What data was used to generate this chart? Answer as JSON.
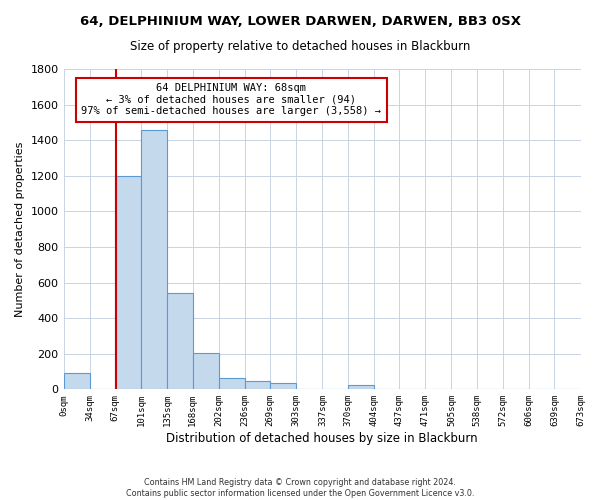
{
  "title": "64, DELPHINIUM WAY, LOWER DARWEN, DARWEN, BB3 0SX",
  "subtitle": "Size of property relative to detached houses in Blackburn",
  "xlabel": "Distribution of detached houses by size in Blackburn",
  "ylabel": "Number of detached properties",
  "bar_color": "#c5d9ed",
  "bar_edge_color": "#5b9bd5",
  "vline_color": "#cc0000",
  "vline_x": 68,
  "annotation_line1": "64 DELPHINIUM WAY: 68sqm",
  "annotation_line2": "← 3% of detached houses are smaller (94)",
  "annotation_line3": "97% of semi-detached houses are larger (3,558) →",
  "annotation_box_color": "#ffffff",
  "annotation_box_edge_color": "#cc0000",
  "bin_edges": [
    0,
    34,
    67,
    101,
    135,
    168,
    202,
    236,
    269,
    303,
    337,
    370,
    404,
    437,
    471,
    505,
    538,
    572,
    606,
    639,
    673
  ],
  "bin_counts": [
    90,
    0,
    1200,
    1460,
    540,
    205,
    65,
    48,
    33,
    0,
    0,
    25,
    0,
    0,
    0,
    0,
    0,
    0,
    0,
    0
  ],
  "ylim": [
    0,
    1800
  ],
  "yticks": [
    0,
    200,
    400,
    600,
    800,
    1000,
    1200,
    1400,
    1600,
    1800
  ],
  "xtick_labels": [
    "0sqm",
    "34sqm",
    "67sqm",
    "101sqm",
    "135sqm",
    "168sqm",
    "202sqm",
    "236sqm",
    "269sqm",
    "303sqm",
    "337sqm",
    "370sqm",
    "404sqm",
    "437sqm",
    "471sqm",
    "505sqm",
    "538sqm",
    "572sqm",
    "606sqm",
    "639sqm",
    "673sqm"
  ],
  "footer_line1": "Contains HM Land Registry data © Crown copyright and database right 2024.",
  "footer_line2": "Contains public sector information licensed under the Open Government Licence v3.0.",
  "background_color": "#ffffff",
  "grid_color": "#c8d4e3"
}
